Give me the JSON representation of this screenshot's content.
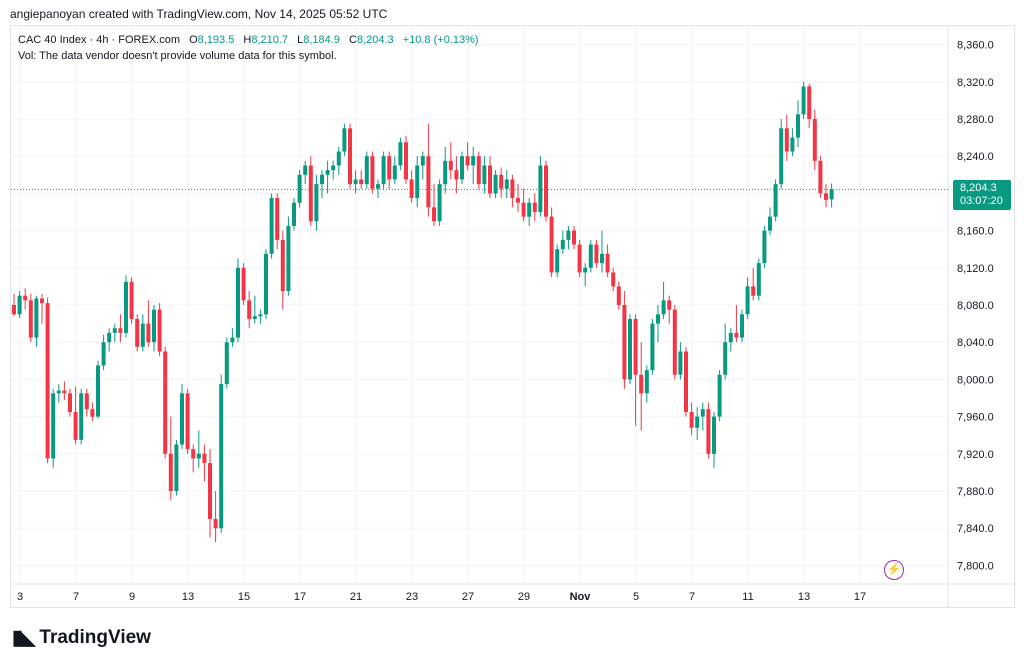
{
  "header": {
    "credit": "angiepanoyan created with TradingView.com, Nov 14, 2025 05:52 UTC"
  },
  "legend": {
    "symbol": "CAC 40 Index · 4h · FOREX.com",
    "open_label": "O",
    "open": "8,193.5",
    "high_label": "H",
    "high": "8,210.7",
    "low_label": "L",
    "low": "8,184.9",
    "close_label": "C",
    "close": "8,204.3",
    "change": "+10.8 (+0.13%)",
    "volume_note": "Vol: The data vendor doesn't provide volume data for this symbol."
  },
  "price_badge": {
    "price": "8,204.3",
    "countdown": "03:07:20"
  },
  "colors": {
    "up": "#089981",
    "down": "#f23645",
    "grid": "#f0f3fa",
    "text": "#131722"
  },
  "footer": {
    "brand": "TradingView",
    "icon": "tradingview-logo-icon"
  },
  "alert_icon": "lightning-icon",
  "chart_data": {
    "type": "candlestick",
    "title": "CAC 40 Index · 4h · FOREX.com",
    "ylim": [
      7780,
      8380
    ],
    "y_ticks": [
      8360,
      8320,
      8280,
      8240,
      8200,
      8160,
      8120,
      8080,
      8040,
      8000,
      7960,
      7920,
      7880,
      7840,
      7800
    ],
    "y_tick_labels": [
      "8,360.0",
      "8,320.0",
      "8,280.0",
      "8,240.0",
      "8,200.0",
      "8,160.0",
      "8,120.0",
      "8,080.0",
      "8,040.0",
      "8,000.0",
      "7,960.0",
      "7,920.0",
      "7,880.0",
      "7,840.0",
      "7,800.0"
    ],
    "x_labels": [
      "3",
      "7",
      "9",
      "13",
      "15",
      "17",
      "21",
      "23",
      "27",
      "29",
      "Nov",
      "5",
      "7",
      "11",
      "13",
      "17"
    ],
    "x_label_index": [
      0,
      10,
      20,
      30,
      40,
      50,
      60,
      70,
      80,
      90,
      100,
      110,
      120,
      130,
      140,
      150
    ],
    "last_price": 8204.3,
    "candles": [
      [
        8080,
        8092,
        8068,
        8070
      ],
      [
        8070,
        8095,
        8066,
        8090
      ],
      [
        8090,
        8098,
        8075,
        8085
      ],
      [
        8085,
        8092,
        8040,
        8045
      ],
      [
        8045,
        8090,
        8035,
        8087
      ],
      [
        8087,
        8092,
        8060,
        8082
      ],
      [
        8082,
        8088,
        7910,
        7915
      ],
      [
        7915,
        7990,
        7905,
        7985
      ],
      [
        7985,
        7995,
        7975,
        7988
      ],
      [
        7988,
        7998,
        7978,
        7985
      ],
      [
        7985,
        7990,
        7960,
        7965
      ],
      [
        7965,
        7992,
        7930,
        7935
      ],
      [
        7935,
        7990,
        7930,
        7985
      ],
      [
        7985,
        7990,
        7960,
        7968
      ],
      [
        7968,
        7975,
        7955,
        7960
      ],
      [
        7960,
        8020,
        7958,
        8015
      ],
      [
        8015,
        8048,
        8010,
        8040
      ],
      [
        8040,
        8055,
        8030,
        8050
      ],
      [
        8050,
        8060,
        8040,
        8055
      ],
      [
        8055,
        8070,
        8040,
        8050
      ],
      [
        8050,
        8112,
        8045,
        8105
      ],
      [
        8105,
        8110,
        8060,
        8065
      ],
      [
        8065,
        8070,
        8030,
        8035
      ],
      [
        8035,
        8070,
        8030,
        8060
      ],
      [
        8060,
        8085,
        8035,
        8040
      ],
      [
        8040,
        8080,
        8030,
        8075
      ],
      [
        8075,
        8082,
        8025,
        8030
      ],
      [
        8030,
        8035,
        7915,
        7920
      ],
      [
        7920,
        7960,
        7870,
        7880
      ],
      [
        7880,
        7935,
        7875,
        7930
      ],
      [
        7930,
        7995,
        7925,
        7985
      ],
      [
        7985,
        7990,
        7920,
        7925
      ],
      [
        7925,
        7930,
        7900,
        7915
      ],
      [
        7915,
        7945,
        7905,
        7920
      ],
      [
        7920,
        7930,
        7890,
        7910
      ],
      [
        7910,
        7925,
        7830,
        7850
      ],
      [
        7850,
        7880,
        7825,
        7840
      ],
      [
        7840,
        8005,
        7835,
        7995
      ],
      [
        7995,
        8045,
        7990,
        8040
      ],
      [
        8040,
        8055,
        8035,
        8045
      ],
      [
        8045,
        8130,
        8040,
        8120
      ],
      [
        8120,
        8125,
        8080,
        8085
      ],
      [
        8085,
        8095,
        8055,
        8065
      ],
      [
        8065,
        8090,
        8060,
        8068
      ],
      [
        8068,
        8075,
        8060,
        8070
      ],
      [
        8070,
        8140,
        8065,
        8135
      ],
      [
        8135,
        8200,
        8130,
        8195
      ],
      [
        8195,
        8200,
        8140,
        8150
      ],
      [
        8150,
        8160,
        8075,
        8095
      ],
      [
        8095,
        8175,
        8090,
        8165
      ],
      [
        8165,
        8195,
        8160,
        8190
      ],
      [
        8190,
        8225,
        8185,
        8220
      ],
      [
        8220,
        8235,
        8210,
        8230
      ],
      [
        8230,
        8240,
        8165,
        8170
      ],
      [
        8170,
        8220,
        8160,
        8210
      ],
      [
        8210,
        8225,
        8195,
        8220
      ],
      [
        8220,
        8235,
        8200,
        8225
      ],
      [
        8225,
        8235,
        8215,
        8230
      ],
      [
        8230,
        8250,
        8220,
        8245
      ],
      [
        8245,
        8275,
        8240,
        8270
      ],
      [
        8270,
        8275,
        8205,
        8210
      ],
      [
        8210,
        8225,
        8200,
        8215
      ],
      [
        8215,
        8225,
        8205,
        8210
      ],
      [
        8210,
        8245,
        8205,
        8240
      ],
      [
        8240,
        8245,
        8200,
        8205
      ],
      [
        8205,
        8215,
        8195,
        8210
      ],
      [
        8210,
        8245,
        8205,
        8240
      ],
      [
        8240,
        8245,
        8205,
        8215
      ],
      [
        8215,
        8240,
        8210,
        8230
      ],
      [
        8230,
        8260,
        8225,
        8255
      ],
      [
        8255,
        8262,
        8210,
        8215
      ],
      [
        8215,
        8225,
        8190,
        8195
      ],
      [
        8195,
        8240,
        8185,
        8230
      ],
      [
        8230,
        8245,
        8215,
        8240
      ],
      [
        8240,
        8275,
        8175,
        8185
      ],
      [
        8185,
        8210,
        8165,
        8170
      ],
      [
        8170,
        8215,
        8165,
        8210
      ],
      [
        8210,
        8250,
        8200,
        8235
      ],
      [
        8235,
        8255,
        8215,
        8225
      ],
      [
        8225,
        8240,
        8200,
        8215
      ],
      [
        8215,
        8245,
        8210,
        8240
      ],
      [
        8240,
        8255,
        8225,
        8230
      ],
      [
        8230,
        8250,
        8210,
        8240
      ],
      [
        8240,
        8245,
        8205,
        8210
      ],
      [
        8210,
        8240,
        8200,
        8230
      ],
      [
        8230,
        8240,
        8195,
        8200
      ],
      [
        8200,
        8225,
        8195,
        8220
      ],
      [
        8220,
        8228,
        8195,
        8205
      ],
      [
        8205,
        8225,
        8195,
        8215
      ],
      [
        8215,
        8220,
        8185,
        8195
      ],
      [
        8195,
        8210,
        8180,
        8190
      ],
      [
        8190,
        8205,
        8170,
        8175
      ],
      [
        8175,
        8195,
        8165,
        8190
      ],
      [
        8190,
        8200,
        8170,
        8180
      ],
      [
        8180,
        8240,
        8175,
        8230
      ],
      [
        8230,
        8235,
        8170,
        8175
      ],
      [
        8175,
        8185,
        8110,
        8115
      ],
      [
        8115,
        8145,
        8110,
        8140
      ],
      [
        8140,
        8160,
        8135,
        8150
      ],
      [
        8150,
        8165,
        8140,
        8160
      ],
      [
        8160,
        8165,
        8140,
        8145
      ],
      [
        8145,
        8150,
        8110,
        8115
      ],
      [
        8115,
        8125,
        8100,
        8120
      ],
      [
        8120,
        8150,
        8115,
        8145
      ],
      [
        8145,
        8150,
        8120,
        8125
      ],
      [
        8125,
        8160,
        8115,
        8135
      ],
      [
        8135,
        8145,
        8110,
        8115
      ],
      [
        8115,
        8120,
        8095,
        8100
      ],
      [
        8100,
        8105,
        8075,
        8080
      ],
      [
        8080,
        8095,
        7990,
        8000
      ],
      [
        8000,
        8070,
        7995,
        8065
      ],
      [
        8065,
        8070,
        7950,
        8005
      ],
      [
        8005,
        8040,
        7945,
        7985
      ],
      [
        7985,
        8015,
        7975,
        8010
      ],
      [
        8010,
        8065,
        8005,
        8060
      ],
      [
        8060,
        8080,
        8040,
        8070
      ],
      [
        8070,
        8105,
        8065,
        8085
      ],
      [
        8085,
        8090,
        8060,
        8075
      ],
      [
        8075,
        8080,
        8000,
        8005
      ],
      [
        8005,
        8040,
        8000,
        8030
      ],
      [
        8030,
        8035,
        7960,
        7965
      ],
      [
        7965,
        7975,
        7940,
        7948
      ],
      [
        7948,
        7970,
        7935,
        7960
      ],
      [
        7960,
        7975,
        7945,
        7968
      ],
      [
        7968,
        7975,
        7915,
        7920
      ],
      [
        7920,
        7965,
        7905,
        7960
      ],
      [
        7960,
        8010,
        7955,
        8005
      ],
      [
        8005,
        8060,
        8000,
        8040
      ],
      [
        8040,
        8055,
        8030,
        8050
      ],
      [
        8050,
        8080,
        8040,
        8045
      ],
      [
        8045,
        8075,
        8040,
        8070
      ],
      [
        8070,
        8110,
        8065,
        8100
      ],
      [
        8100,
        8120,
        8085,
        8090
      ],
      [
        8090,
        8130,
        8085,
        8125
      ],
      [
        8125,
        8165,
        8120,
        8160
      ],
      [
        8160,
        8185,
        8155,
        8175
      ],
      [
        8175,
        8215,
        8170,
        8210
      ],
      [
        8210,
        8280,
        8205,
        8270
      ],
      [
        8270,
        8285,
        8235,
        8245
      ],
      [
        8245,
        8270,
        8240,
        8260
      ],
      [
        8260,
        8300,
        8250,
        8285
      ],
      [
        8285,
        8320,
        8280,
        8315
      ],
      [
        8315,
        8318,
        8270,
        8280
      ],
      [
        8280,
        8290,
        8225,
        8235
      ],
      [
        8235,
        8240,
        8195,
        8200
      ],
      [
        8200,
        8210,
        8185,
        8193
      ],
      [
        8193.5,
        8210.7,
        8184.9,
        8204.3
      ]
    ]
  }
}
